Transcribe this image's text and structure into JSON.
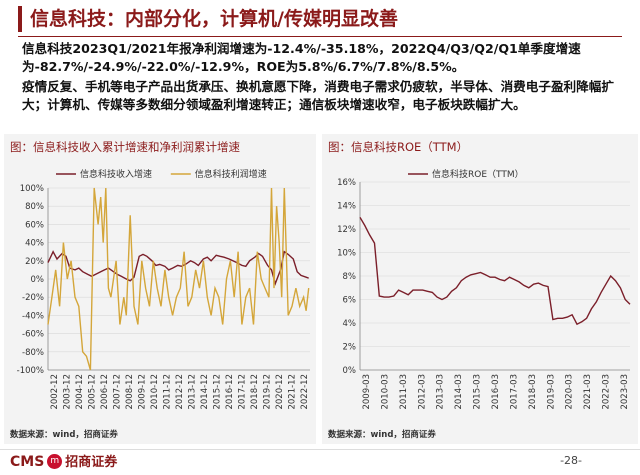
{
  "page": {
    "title": "信息科技：内部分化，计算机/传媒明显改善",
    "bullet_1": "信息科技2023Q1/2021年报净利润增速为-12.4%/-35.18%，2022Q4/Q3/Q2/Q1单季度增速为-82.7%/-24.9%/-22.0%/-12.9%，ROE为5.8%/6.7%/7.8%/8.5%。",
    "bullet_2": "疫情反复、手机等电子产品出货承压、换机意愿下降，消费电子需求仍疲软，半导体、消费电子盈利降幅扩大；计算机、传媒等多数细分领域盈利增速转正；通信板块增速收窄，电子板块跌幅扩大。",
    "page_number": "-28-"
  },
  "footer": {
    "logo_en": "CMS",
    "logo_cn": "招商证券",
    "badge": "m"
  },
  "chart_data": [
    {
      "type": "line",
      "title": "图：信息科技收入累计增速和净利润累计增速",
      "source": "数据来源：wind，招商证券",
      "legend_position": "top",
      "x_tick_labels": [
        "2002-12",
        "2003-12",
        "2004-12",
        "2005-12",
        "2006-12",
        "2007-12",
        "2008-12",
        "2009-12",
        "2010-12",
        "2011-12",
        "2012-12",
        "2013-12",
        "2014-12",
        "2015-12",
        "2016-12",
        "2017-12",
        "2018-12",
        "2019-12",
        "2020-12",
        "2021-12",
        "2022-12"
      ],
      "y_ticks": [
        "100%",
        "80%",
        "60%",
        "40%",
        "20%",
        "0%",
        "-20%",
        "-40%",
        "-60%",
        "-80%",
        "-100%"
      ],
      "ylim": [
        -100,
        100
      ],
      "xlim": [
        2002.9,
        2023.3
      ],
      "series": [
        {
          "name": "信息科技收入增速",
          "color": "#7b1f2a",
          "x": [
            2002.9,
            2003.3,
            2003.6,
            2004.0,
            2004.3,
            2004.6,
            2005.0,
            2005.3,
            2005.6,
            2006.0,
            2006.3,
            2006.6,
            2007.0,
            2007.3,
            2007.6,
            2008.0,
            2008.3,
            2008.6,
            2009.0,
            2009.3,
            2009.6,
            2010.0,
            2010.3,
            2010.6,
            2011.0,
            2011.3,
            2011.6,
            2012.0,
            2012.3,
            2012.6,
            2013.0,
            2013.3,
            2013.6,
            2014.0,
            2014.3,
            2014.6,
            2015.0,
            2015.3,
            2015.6,
            2016.0,
            2016.3,
            2016.6,
            2017.0,
            2017.3,
            2017.6,
            2018.0,
            2018.3,
            2018.6,
            2019.0,
            2019.3,
            2019.6,
            2020.0,
            2020.3,
            2020.6,
            2021.0,
            2021.3,
            2021.6,
            2022.0,
            2022.3,
            2022.6,
            2023.0,
            2023.2
          ],
          "values": [
            18,
            30,
            22,
            28,
            25,
            12,
            10,
            12,
            8,
            5,
            3,
            5,
            8,
            10,
            12,
            8,
            5,
            3,
            0,
            -2,
            2,
            25,
            27,
            25,
            20,
            15,
            16,
            14,
            10,
            12,
            15,
            14,
            16,
            20,
            18,
            15,
            22,
            24,
            20,
            26,
            25,
            24,
            22,
            20,
            18,
            15,
            14,
            20,
            24,
            28,
            25,
            15,
            10,
            -5,
            10,
            30,
            27,
            22,
            8,
            4,
            2,
            1
          ]
        },
        {
          "name": "信息科技利润增速",
          "color": "#d4a63a",
          "x": [
            2002.9,
            2003.2,
            2003.5,
            2003.8,
            2004.1,
            2004.4,
            2004.7,
            2005.0,
            2005.3,
            2005.6,
            2005.9,
            2006.2,
            2006.5,
            2006.8,
            2007.0,
            2007.2,
            2007.4,
            2007.6,
            2007.8,
            2008.0,
            2008.2,
            2008.5,
            2008.8,
            2009.0,
            2009.3,
            2009.6,
            2009.9,
            2010.2,
            2010.5,
            2010.8,
            2011.1,
            2011.4,
            2011.7,
            2012.0,
            2012.3,
            2012.6,
            2012.9,
            2013.2,
            2013.5,
            2013.8,
            2014.1,
            2014.4,
            2014.7,
            2015.0,
            2015.3,
            2015.6,
            2015.9,
            2016.2,
            2016.5,
            2016.8,
            2017.1,
            2017.4,
            2017.7,
            2018.0,
            2018.3,
            2018.6,
            2018.9,
            2019.2,
            2019.5,
            2019.8,
            2020.1,
            2020.3,
            2020.5,
            2020.7,
            2020.9,
            2021.1,
            2021.3,
            2021.6,
            2021.9,
            2022.2,
            2022.5,
            2022.8,
            2023.0,
            2023.2
          ],
          "values": [
            -50,
            -20,
            10,
            -30,
            40,
            0,
            20,
            -20,
            -30,
            -80,
            -85,
            -100,
            100,
            60,
            90,
            40,
            100,
            -10,
            -20,
            0,
            20,
            -50,
            -20,
            -40,
            70,
            -30,
            -50,
            20,
            -10,
            -30,
            20,
            -10,
            -30,
            10,
            -20,
            -40,
            -20,
            -10,
            30,
            -30,
            -20,
            10,
            -10,
            20,
            -20,
            -40,
            -10,
            -20,
            -50,
            0,
            20,
            -20,
            30,
            -50,
            -20,
            -10,
            -50,
            30,
            0,
            -10,
            -20,
            100,
            -10,
            80,
            40,
            -20,
            100,
            -40,
            -30,
            -10,
            -30,
            -20,
            -35,
            -10
          ]
        }
      ]
    },
    {
      "type": "line",
      "title": "图：信息科技ROE（TTM）",
      "source": "数据来源：wind，招商证券",
      "legend_position": "top",
      "x_tick_labels": [
        "2009-03",
        "2010-03",
        "2011-03",
        "2012-03",
        "2013-03",
        "2014-03",
        "2015-03",
        "2016-03",
        "2017-03",
        "2018-03",
        "2019-03",
        "2020-03",
        "2021-03",
        "2022-03",
        "2023-03"
      ],
      "y_ticks": [
        "16%",
        "14%",
        "12%",
        "10%",
        "8%",
        "6%",
        "4%",
        "2%",
        "0%"
      ],
      "ylim": [
        0,
        16
      ],
      "xlim": [
        2009.0,
        2023.0
      ],
      "series": [
        {
          "name": "信息科技ROE（TTM）",
          "color": "#7b1f2a",
          "x": [
            2009.0,
            2009.25,
            2009.5,
            2009.75,
            2010.0,
            2010.25,
            2010.5,
            2010.75,
            2011.0,
            2011.25,
            2011.5,
            2011.75,
            2012.0,
            2012.25,
            2012.5,
            2012.75,
            2013.0,
            2013.25,
            2013.5,
            2013.75,
            2014.0,
            2014.25,
            2014.5,
            2014.75,
            2015.0,
            2015.25,
            2015.5,
            2015.75,
            2016.0,
            2016.25,
            2016.5,
            2016.75,
            2017.0,
            2017.25,
            2017.5,
            2017.75,
            2018.0,
            2018.25,
            2018.5,
            2018.75,
            2019.0,
            2019.25,
            2019.5,
            2019.75,
            2020.0,
            2020.25,
            2020.5,
            2020.75,
            2021.0,
            2021.25,
            2021.5,
            2021.75,
            2022.0,
            2022.25,
            2022.5,
            2022.75,
            2023.0
          ],
          "values": [
            13.0,
            12.3,
            11.5,
            10.8,
            6.3,
            6.2,
            6.2,
            6.3,
            6.8,
            6.6,
            6.4,
            6.8,
            6.8,
            6.8,
            6.7,
            6.6,
            6.2,
            6.0,
            6.2,
            6.7,
            7.0,
            7.6,
            7.9,
            8.1,
            8.2,
            8.3,
            8.1,
            7.9,
            7.9,
            7.7,
            7.6,
            7.9,
            7.7,
            7.5,
            7.2,
            7.0,
            7.3,
            7.4,
            7.2,
            7.1,
            4.3,
            4.4,
            4.4,
            4.5,
            4.7,
            3.9,
            4.1,
            4.4,
            5.2,
            5.8,
            6.6,
            7.3,
            8.0,
            7.6,
            7.0,
            6.0,
            5.6
          ]
        }
      ]
    }
  ]
}
